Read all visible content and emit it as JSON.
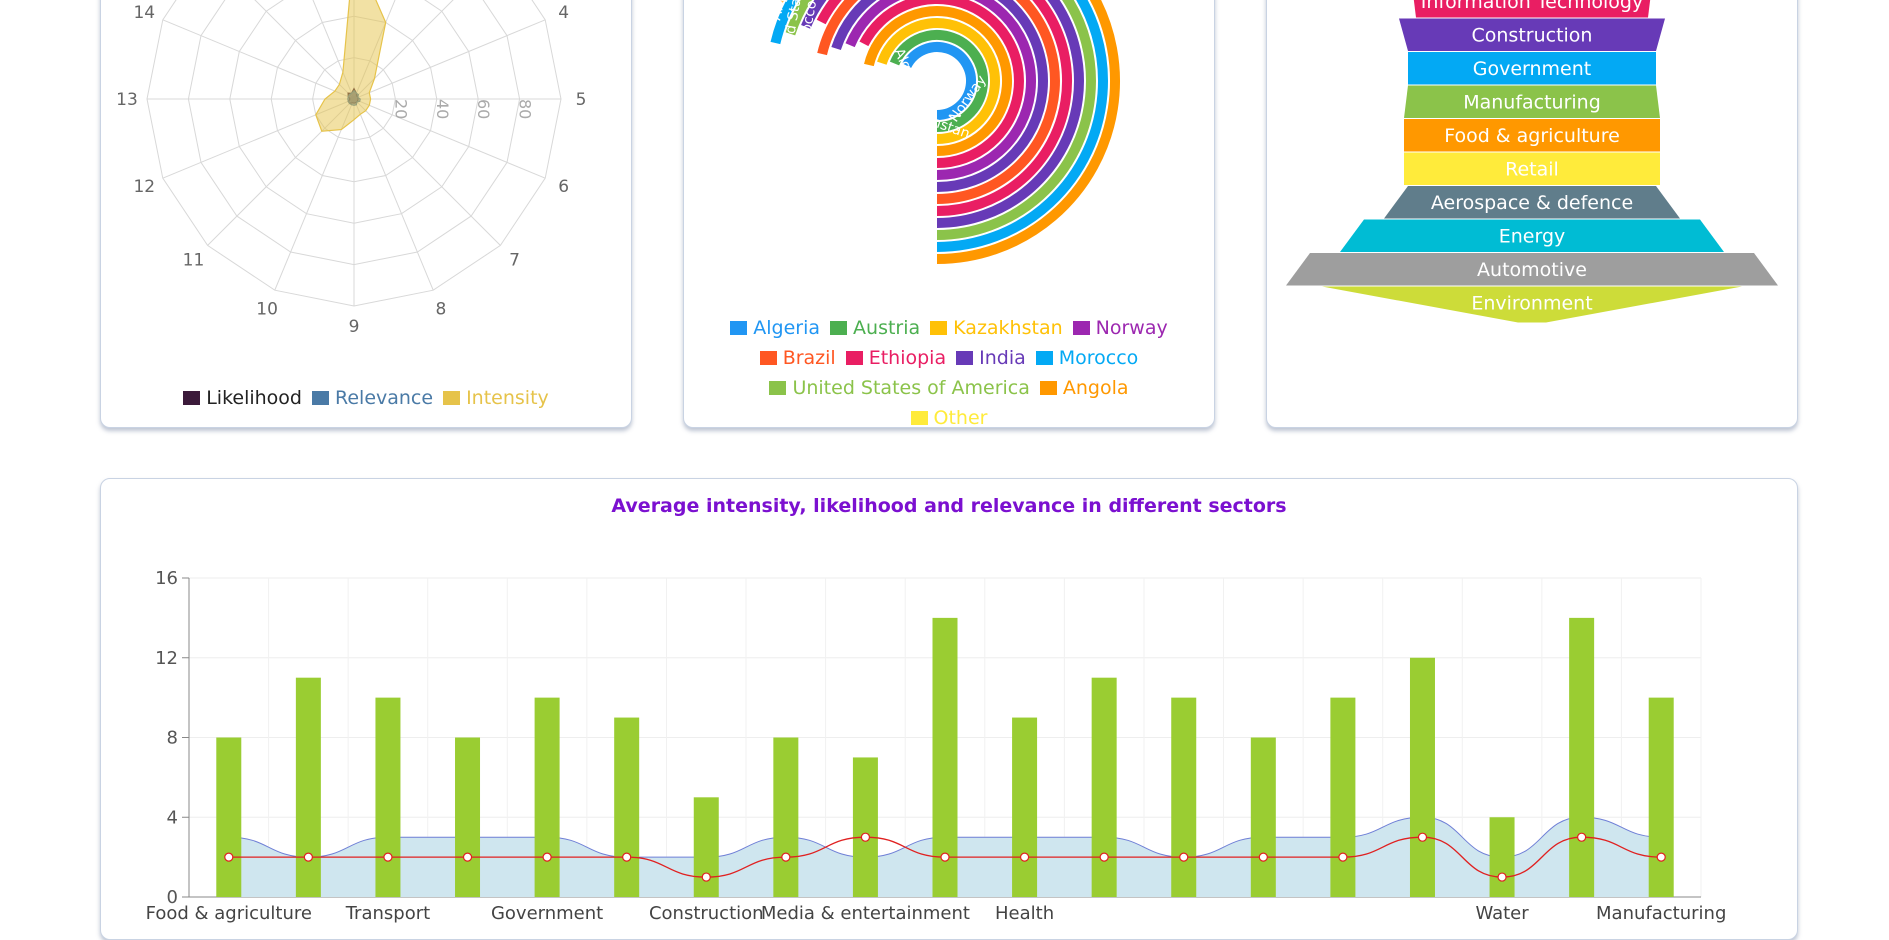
{
  "chart_data": [
    {
      "type": "radar",
      "visible_spokes": [
        "4",
        "5",
        "6",
        "7",
        "8",
        "9",
        "10",
        "11",
        "12",
        "13",
        "14"
      ],
      "radial_ticks": [
        "20",
        "40",
        "60",
        "80"
      ],
      "rmax": 100,
      "grid": true,
      "legend_position": "bottom",
      "series": [
        {
          "name": "Likelihood",
          "color": "#3b1a3a",
          "values": [
            5,
            3,
            2,
            2,
            2,
            2,
            2,
            2,
            2,
            2,
            3,
            3,
            2,
            3,
            4,
            3
          ]
        },
        {
          "name": "Relevance",
          "color": "#4a7aa6",
          "values": [
            4,
            3,
            3,
            2,
            3,
            3,
            2,
            3,
            3,
            3,
            3,
            3,
            3,
            3,
            3,
            3
          ]
        },
        {
          "name": "Intensity",
          "color": "#e6c34a",
          "values": [
            72,
            40,
            14,
            8,
            8,
            8,
            8,
            8,
            10,
            16,
            22,
            20,
            14,
            10,
            10,
            14
          ]
        }
      ]
    },
    {
      "type": "sunburst",
      "legend_position": "bottom",
      "ring_labels": [
        "India",
        "Ethiopia",
        "Brazil",
        "Norway",
        "Kazakhstan",
        "Austria",
        "Algeria",
        "Morocco",
        "United States of America",
        "Angola"
      ],
      "legend": [
        {
          "name": "Algeria",
          "color": "#2196f3"
        },
        {
          "name": "Austria",
          "color": "#4caf50"
        },
        {
          "name": "Kazakhstan",
          "color": "#ffc107"
        },
        {
          "name": "Norway",
          "color": "#9c27b0"
        },
        {
          "name": "Brazil",
          "color": "#ff5722"
        },
        {
          "name": "Ethiopia",
          "color": "#e91e63"
        },
        {
          "name": "India",
          "color": "#673ab7"
        },
        {
          "name": "Morocco",
          "color": "#03a9f4"
        },
        {
          "name": "United States of America",
          "color": "#8bc34a"
        },
        {
          "name": "Angola",
          "color": "#ff9800"
        },
        {
          "name": "Other",
          "color": "#ffeb3b"
        }
      ]
    },
    {
      "type": "funnel",
      "stages": [
        {
          "label": "Information Technology",
          "color": "#e91e63"
        },
        {
          "label": "Construction",
          "color": "#673ab7"
        },
        {
          "label": "Government",
          "color": "#03a9f4"
        },
        {
          "label": "Manufacturing",
          "color": "#8bc34a"
        },
        {
          "label": "Food & agriculture",
          "color": "#ff9800"
        },
        {
          "label": "Retail",
          "color": "#ffeb3b"
        },
        {
          "label": "Aerospace & defence",
          "color": "#607d8b"
        },
        {
          "label": "Energy",
          "color": "#00bcd4"
        },
        {
          "label": "Automotive",
          "color": "#9e9e9e"
        },
        {
          "label": "Environment",
          "color": "#cddc39"
        }
      ]
    },
    {
      "type": "bar",
      "title": "Average intensity, likelihood and relevance in different sectors",
      "categories": [
        "Food & agriculture",
        "",
        "Transport",
        "",
        "Government",
        "",
        "Construction",
        "",
        "Media & entertainment",
        "",
        "Health",
        "",
        "",
        "",
        "",
        "",
        "Water",
        "",
        "Manufacturing"
      ],
      "ylim": [
        0,
        16
      ],
      "yticks": [
        0,
        4,
        8,
        12,
        16
      ],
      "grid": true,
      "series": [
        {
          "name": "Intensity",
          "type": "bar",
          "color": "#9acd32",
          "values": [
            8,
            11,
            10,
            8,
            10,
            9,
            5,
            8,
            7,
            14,
            9,
            11,
            10,
            8,
            10,
            12,
            4,
            14,
            10
          ]
        },
        {
          "name": "Relevance",
          "type": "area",
          "color": "#6f7fd6",
          "values": [
            3,
            2,
            3,
            3,
            3,
            2,
            2,
            3,
            2,
            3,
            3,
            3,
            2,
            3,
            3,
            4,
            2,
            4,
            3
          ]
        },
        {
          "name": "Likelihood",
          "type": "line",
          "color": "#e02020",
          "values": [
            2,
            2,
            2,
            2,
            2,
            2,
            1,
            2,
            3,
            2,
            2,
            2,
            2,
            2,
            2,
            3,
            1,
            3,
            2
          ]
        }
      ]
    }
  ]
}
